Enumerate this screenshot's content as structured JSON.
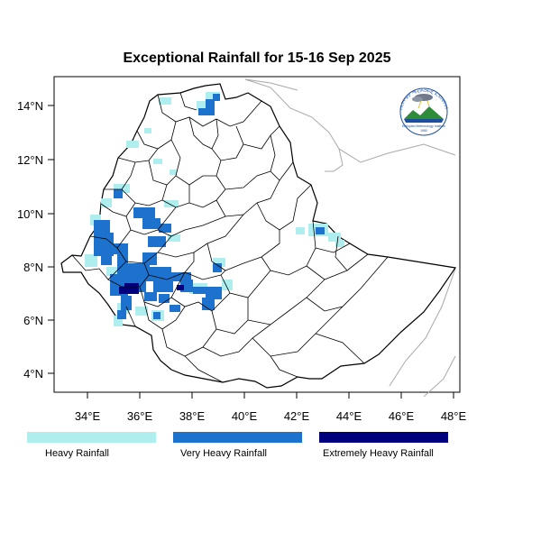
{
  "title": "Exceptional Rainfall for 15-16 Sep 2025",
  "x_ticks": [
    "34°E",
    "36°E",
    "38°E",
    "40°E",
    "42°E",
    "44°E",
    "46°E",
    "48°E"
  ],
  "y_ticks": [
    "14°N",
    "12°N",
    "10°N",
    "8°N",
    "6°N",
    "4°N"
  ],
  "legend": [
    {
      "label": "Heavy Rainfall",
      "color": "#aeeeee"
    },
    {
      "label": "Very Heavy Rainfall",
      "color": "#1c72cc"
    },
    {
      "label": "Extremely Heavy Rainfall",
      "color": "#00007f"
    }
  ],
  "logo": {
    "top_text": "የኢትዮጵያ ሜቲዎሮሎጂ ኢንስቲትዩት",
    "bottom_text": "Ethiopian Meteorology Institute",
    "year": "1980"
  },
  "colors": {
    "border": "#000000",
    "outside_border": "#a8a8a8"
  }
}
